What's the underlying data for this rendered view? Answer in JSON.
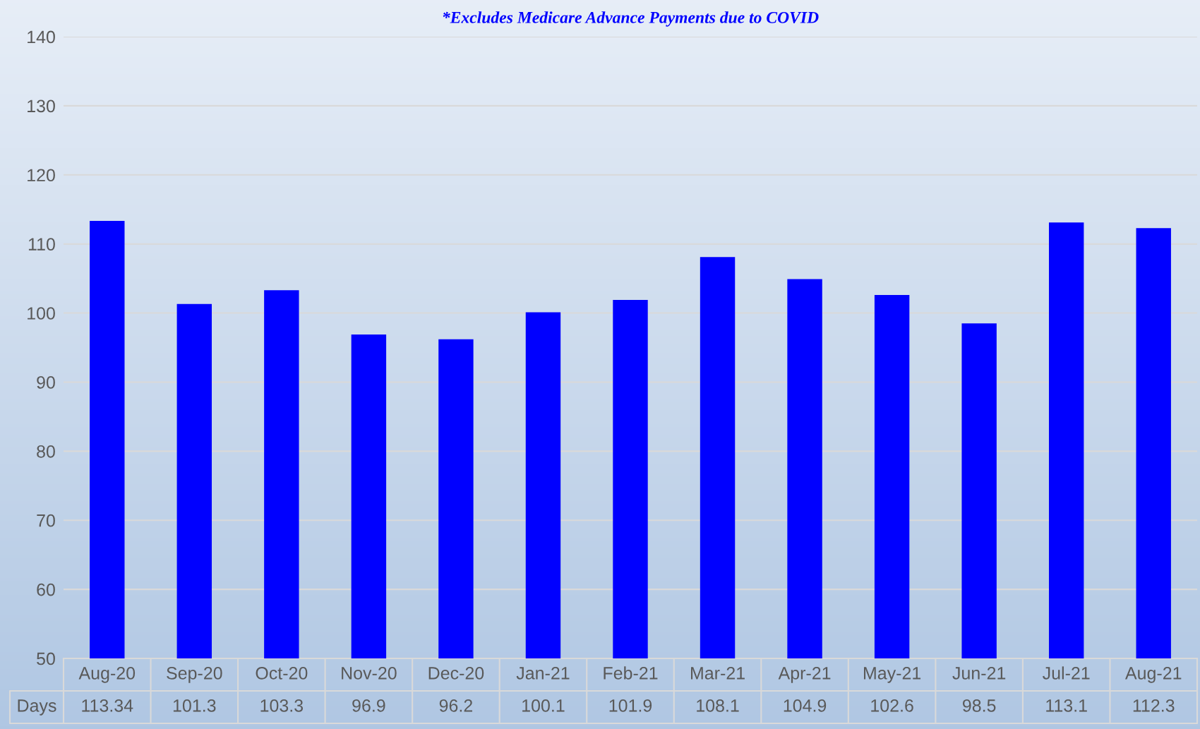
{
  "chart_data": {
    "type": "bar",
    "title": "*Excludes Medicare Advance Payments due to COVID",
    "categories": [
      "Aug-20",
      "Sep-20",
      "Oct-20",
      "Nov-20",
      "Dec-20",
      "Jan-21",
      "Feb-21",
      "Mar-21",
      "Apr-21",
      "May-21",
      "Jun-21",
      "Jul-21",
      "Aug-21"
    ],
    "series": [
      {
        "name": "Days",
        "color": "#0000ff",
        "values": [
          113.34,
          101.3,
          103.3,
          96.9,
          96.2,
          100.1,
          101.9,
          108.1,
          104.9,
          102.6,
          98.5,
          113.1,
          112.3
        ]
      }
    ],
    "ylim": [
      50,
      140
    ],
    "yticks": [
      50,
      60,
      70,
      80,
      90,
      100,
      110,
      120,
      130,
      140
    ],
    "grid": "y",
    "data_labels": true
  }
}
